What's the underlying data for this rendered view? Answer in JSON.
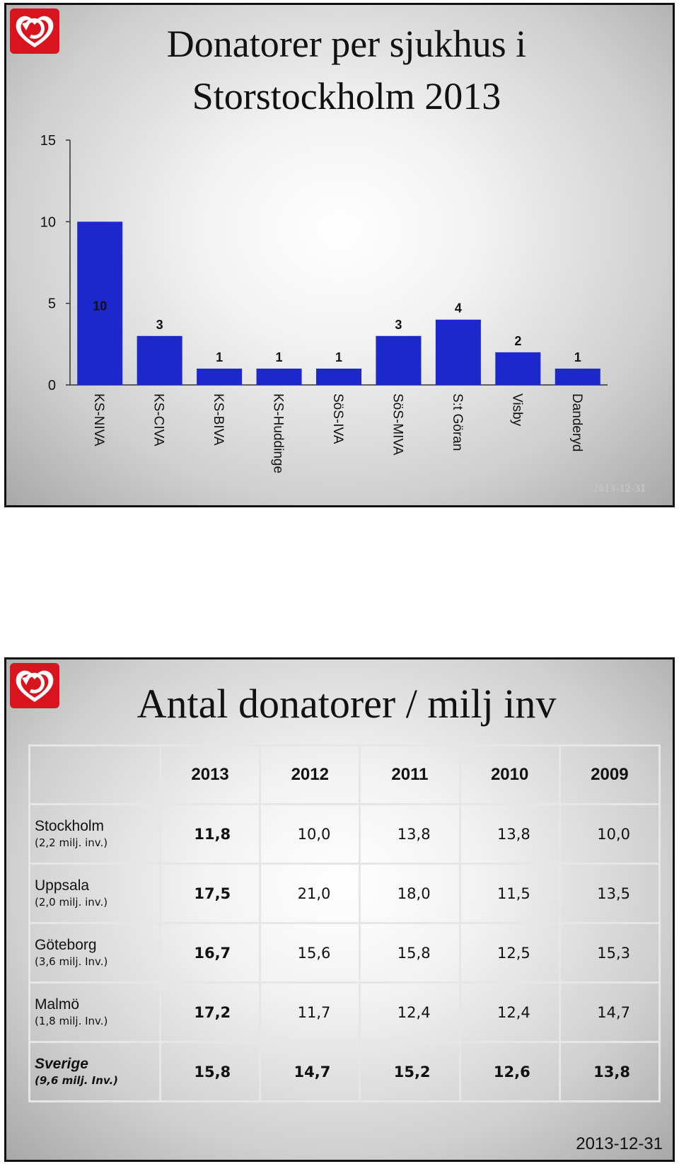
{
  "slide1": {
    "title_line1": "Donatorer per sjukhus i",
    "title_line2": "Storstockholm 2013",
    "date": "2013-12-31"
  },
  "slide2": {
    "title": "Antal donatorer / milj inv",
    "date": "2013-12-31",
    "table": {
      "headers": [
        "2013",
        "2012",
        "2011",
        "2010",
        "2009"
      ],
      "rows": [
        {
          "name": "Stockholm",
          "sub": "(2,2 milj. inv.)",
          "values": [
            "11,8",
            "10,0",
            "13,8",
            "13,8",
            "10,0"
          ]
        },
        {
          "name": "Uppsala",
          "sub": "(2,0 milj. inv.)",
          "values": [
            "17,5",
            "21,0",
            "18,0",
            "11,5",
            "13,5"
          ]
        },
        {
          "name": "Göteborg",
          "sub": "(3,6 milj. Inv.)",
          "values": [
            "16,7",
            "15,6",
            "15,8",
            "12,5",
            "15,3"
          ]
        },
        {
          "name": "Malmö",
          "sub": "(1,8 milj. Inv.)",
          "values": [
            "17,2",
            "11,7",
            "12,4",
            "12,4",
            "14,7"
          ]
        },
        {
          "name": "Sverige",
          "sub": "(9,6 milj. Inv.)",
          "values": [
            "15,8",
            "14,7",
            "15,2",
            "12,6",
            "13,8"
          ]
        }
      ]
    }
  },
  "colors": {
    "bar": "#1c28cc",
    "logo_red": "#d8141e",
    "date_gray": "#c4c4c4"
  },
  "icons": {
    "logo": "heart-arrow-logo-icon"
  },
  "chart_data": {
    "type": "bar",
    "categories": [
      "KS-NIVA",
      "KS-CIVA",
      "KS-BIVA",
      "KS-Huddinge",
      "SöS-IVA",
      "SöS-MIVA",
      "S:t Göran",
      "Visby",
      "Danderyd"
    ],
    "values": [
      10,
      3,
      1,
      1,
      1,
      3,
      4,
      2,
      1
    ],
    "title": "Donatorer per sjukhus i Storstockholm 2013",
    "yticks": [
      0,
      5,
      10,
      15
    ],
    "ylim": [
      0,
      15
    ],
    "grid": false,
    "legend": "none",
    "data_labels": true
  }
}
